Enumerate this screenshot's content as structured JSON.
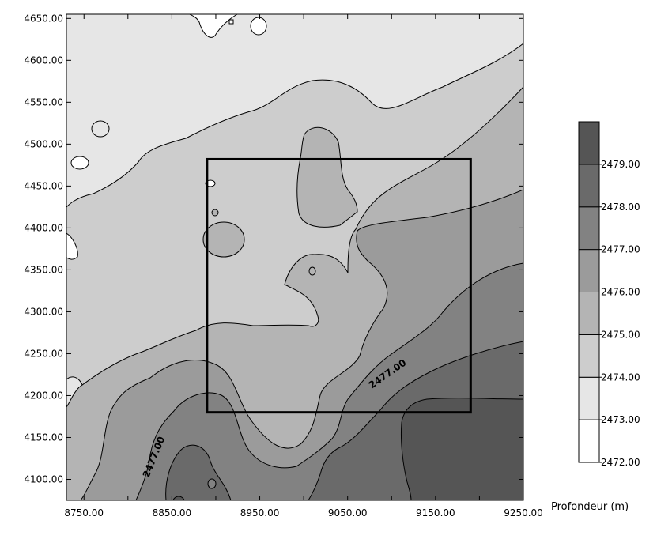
{
  "chart_data": {
    "type": "contour",
    "xlabel": "",
    "ylabel": "",
    "xlim": [
      8730,
      9250
    ],
    "ylim": [
      4075,
      4655
    ],
    "x_ticks": [
      8750,
      8850,
      8950,
      9050,
      9150,
      9250
    ],
    "x_tick_labels": [
      "8750.00",
      "8850.00",
      "8950.00",
      "9050.00",
      "9150.00",
      "9250.00"
    ],
    "y_ticks": [
      4100,
      4150,
      4200,
      4250,
      4300,
      4350,
      4400,
      4450,
      4500,
      4550,
      4600,
      4650
    ],
    "y_tick_labels": [
      "4100.00",
      "4150.00",
      "4200.00",
      "4250.00",
      "4300.00",
      "4350.00",
      "4400.00",
      "4450.00",
      "4500.00",
      "4550.00",
      "4600.00",
      "4650.00"
    ],
    "contour_levels": [
      2472,
      2473,
      2474,
      2475,
      2476,
      2477,
      2478,
      2479
    ],
    "contour_labels": [
      "2477.00",
      "2477.00"
    ],
    "rectangle": {
      "x": [
        8890,
        9190
      ],
      "y": [
        4180,
        4482
      ]
    },
    "legend": {
      "title": "Profondeur (m)",
      "placement": "right",
      "levels": [
        2472,
        2473,
        2474,
        2475,
        2476,
        2477,
        2478,
        2479
      ],
      "labels": [
        "2472.00",
        "2473.00",
        "2474.00",
        "2475.00",
        "2476.00",
        "2477.00",
        "2478.00",
        "2479.00"
      ],
      "colors": [
        "#ffffff",
        "#e6e6e6",
        "#cdcdcd",
        "#b4b4b4",
        "#9b9b9b",
        "#828282",
        "#6a6a6a",
        "#555555"
      ]
    }
  }
}
